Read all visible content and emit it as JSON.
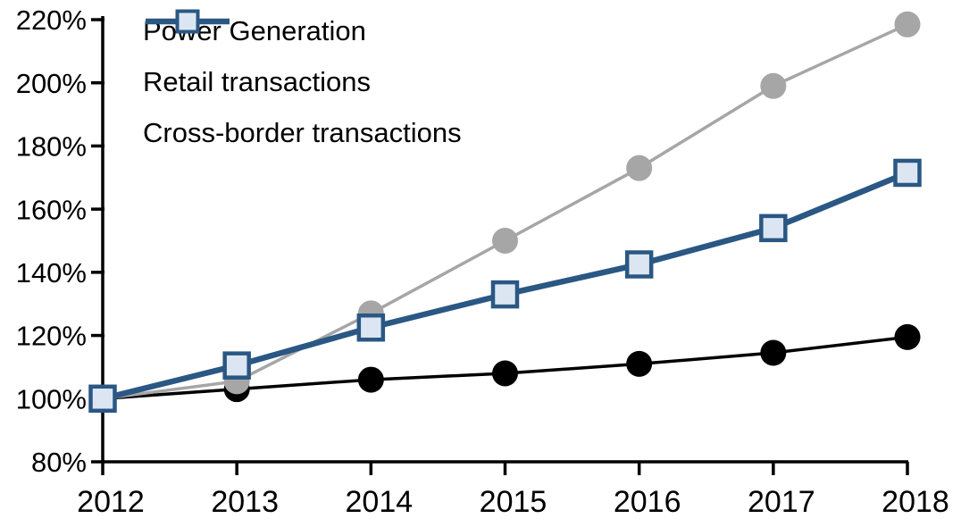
{
  "chart_data": {
    "type": "line",
    "title": "",
    "x_labels": [
      "2012",
      "2013",
      "2014",
      "2015",
      "2016",
      "2017",
      "2018"
    ],
    "ytick_values": [
      80,
      100,
      120,
      140,
      160,
      180,
      200,
      220
    ],
    "ytick_labels": [
      "80%",
      "100%",
      "120%",
      "140%",
      "160%",
      "180%",
      "200%",
      "220%"
    ],
    "ylim": [
      80,
      220
    ],
    "grid": false,
    "legend_position": "top-left",
    "background_color": "#ffffff",
    "axis_color": "#000000",
    "series": [
      {
        "name": "Power Generation",
        "color": "#000000",
        "marker": "circle",
        "marker_fill": "#000000",
        "line_width": 3.5,
        "values": [
          100,
          103,
          106,
          108,
          111,
          114.5,
          119.5
        ]
      },
      {
        "name": "Retail transactions",
        "color": "#A6A6A6",
        "marker": "circle",
        "marker_fill": "#A6A6A6",
        "line_width": 3.5,
        "values": [
          100,
          105.5,
          127,
          150,
          173,
          199,
          218.5
        ]
      },
      {
        "name": "Cross-border transactions",
        "color": "#2A5783",
        "marker": "square",
        "marker_fill": "#DCE6F2",
        "line_width": 6.5,
        "values": [
          100,
          110.5,
          122.5,
          133,
          142.5,
          154,
          171.5
        ]
      }
    ]
  }
}
